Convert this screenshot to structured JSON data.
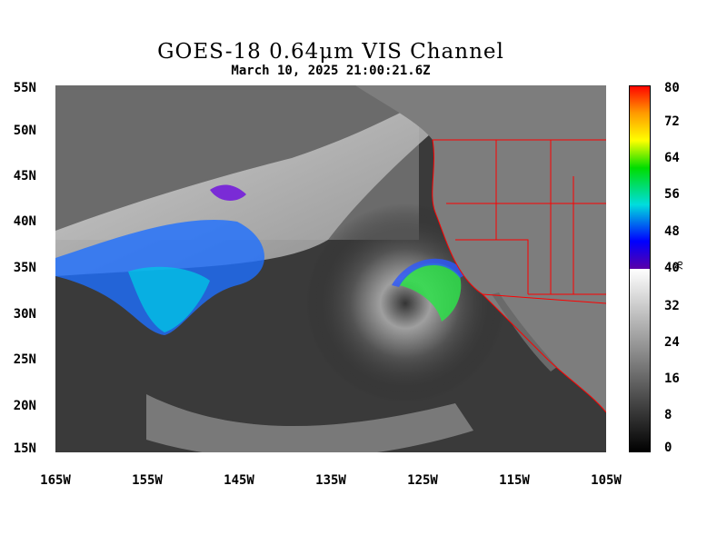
{
  "title": "GOES-18  0.64μm VIS Channel",
  "subtitle": "March 10,  2025 21:00:21.6Z",
  "lat_labels": [
    "55N",
    "50N",
    "45N",
    "40N",
    "35N",
    "30N",
    "25N",
    "20N",
    "15N"
  ],
  "lon_labels": [
    "165W",
    "155W",
    "145W",
    "135W",
    "125W",
    "115W",
    "105W"
  ],
  "colorbar": {
    "labels": [
      "80",
      "72",
      "64",
      "56",
      "48",
      "40",
      "32",
      "24",
      "16",
      "8",
      "0"
    ],
    "unit": "%",
    "range": [
      0,
      80
    ]
  },
  "map": {
    "lat_range": [
      15,
      55
    ],
    "lon_range": [
      -165,
      -105
    ],
    "border_color": "#ff0000",
    "storm_center": {
      "lat": 32,
      "lon": -128
    }
  }
}
